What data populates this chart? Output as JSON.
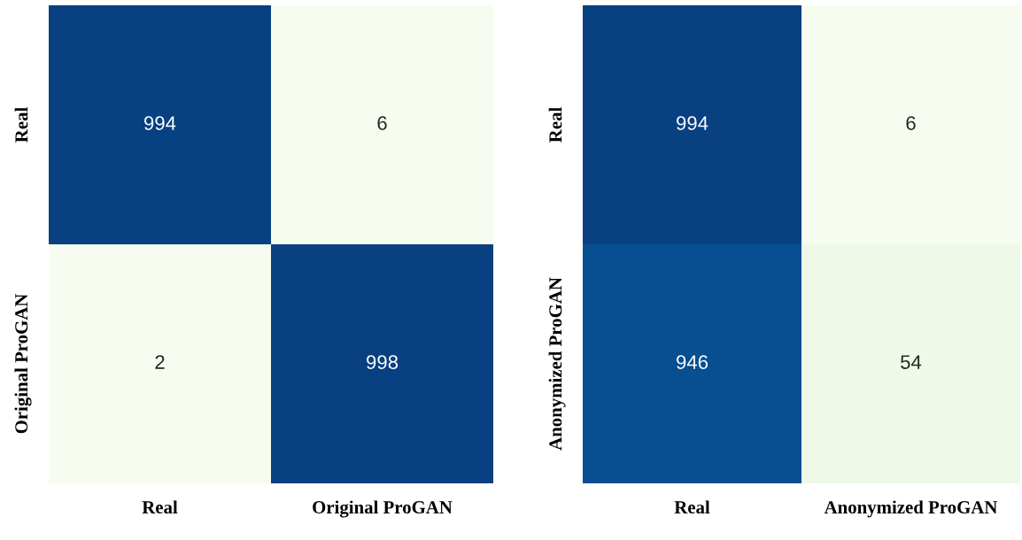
{
  "chart_data": [
    {
      "type": "heatmap",
      "categories": [
        "Real",
        "Original ProGAN"
      ],
      "y_categories": [
        "Real",
        "Original ProGAN"
      ],
      "cells": [
        [
          994,
          6
        ],
        [
          2,
          998
        ]
      ],
      "data_labels": true
    },
    {
      "type": "heatmap",
      "categories": [
        "Real",
        "Anonymized ProGAN"
      ],
      "y_categories": [
        "Real",
        "Anonymized ProGAN"
      ],
      "cells": [
        [
          994,
          6
        ],
        [
          946,
          54
        ]
      ],
      "data_labels": true
    }
  ]
}
